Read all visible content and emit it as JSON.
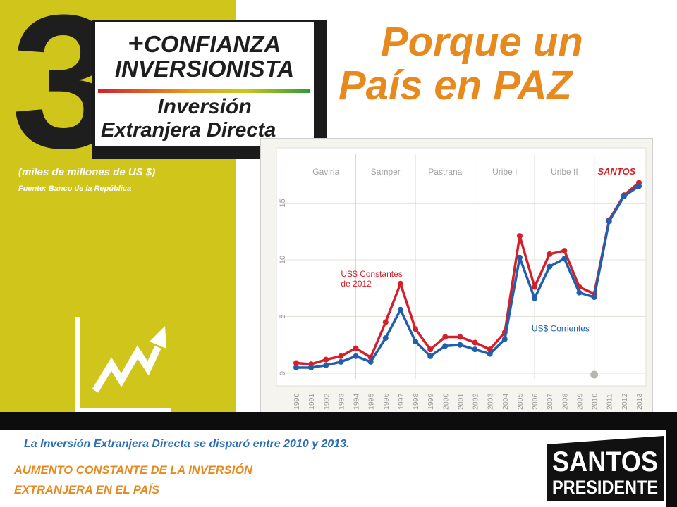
{
  "slide": {
    "number": "3",
    "plus_sign": "+",
    "title_line1": "CONFIANZA",
    "title_line2": "INVERSIONISTA",
    "subtitle_line1": "Inversión",
    "subtitle_line2": "Extranjera Directa",
    "units": "(miles de millones de US $)",
    "source": "Fuente: Banco de la República",
    "headline_line1": "Porque un",
    "headline_line2": "País en PAZ",
    "caption": "La Inversión Extranjera Directa se disparó entre 2010 y 2013.",
    "tagline_line1": "AUMENTO CONSTANTE DE LA INVERSIÓN",
    "tagline_line2": "EXTRANJERA EN EL PAÍS",
    "logo_line1": "SANTOS",
    "logo_line2": "PRESIDENTE"
  },
  "colors": {
    "panel": "#cfc51b",
    "accent_orange": "#e8891e",
    "series_constant": "#d4202a",
    "series_current": "#1f5fae",
    "caption_blue": "#2c6fb4"
  },
  "icons": [
    "growth-arrow-icon"
  ],
  "chart_data": {
    "type": "line",
    "x": [
      "1990",
      "1991",
      "1992",
      "1993",
      "1994",
      "1995",
      "1996",
      "1997",
      "1998",
      "1999",
      "2000",
      "2001",
      "2002",
      "2003",
      "2004",
      "2005",
      "2006",
      "2007",
      "2008",
      "2009",
      "2010",
      "2011",
      "2012",
      "2013"
    ],
    "yticks": [
      "0",
      "5",
      "10",
      "15"
    ],
    "ylim": [
      0,
      19
    ],
    "periods": [
      {
        "label": "Gaviria",
        "start": "1990",
        "end": "1994"
      },
      {
        "label": "Samper",
        "start": "1994",
        "end": "1998"
      },
      {
        "label": "Pastrana",
        "start": "1998",
        "end": "2002"
      },
      {
        "label": "Uribe I",
        "start": "2002",
        "end": "2006"
      },
      {
        "label": "Uribe II",
        "start": "2006",
        "end": "2010"
      },
      {
        "label": "SANTOS",
        "start": "2010",
        "end": "2013"
      }
    ],
    "series": [
      {
        "name": "US$ Constantes de 2012",
        "name_line1": "US$ Constantes",
        "name_line2": "de 2012",
        "color": "#d4202a",
        "values": [
          0.9,
          0.8,
          1.2,
          1.5,
          2.2,
          1.4,
          4.5,
          7.9,
          3.9,
          2.1,
          3.2,
          3.2,
          2.7,
          2.1,
          3.6,
          12.1,
          7.6,
          10.5,
          10.8,
          7.6,
          7.0,
          13.5,
          15.7,
          16.8
        ]
      },
      {
        "name": "US$ Corrientes",
        "color": "#1f5fae",
        "values": [
          0.5,
          0.5,
          0.7,
          1.0,
          1.5,
          1.0,
          3.1,
          5.6,
          2.8,
          1.5,
          2.4,
          2.5,
          2.1,
          1.7,
          3.0,
          10.2,
          6.6,
          9.4,
          10.1,
          7.1,
          6.7,
          13.4,
          15.6,
          16.5
        ]
      }
    ],
    "marker": {
      "x": "2010",
      "y": 0
    }
  }
}
